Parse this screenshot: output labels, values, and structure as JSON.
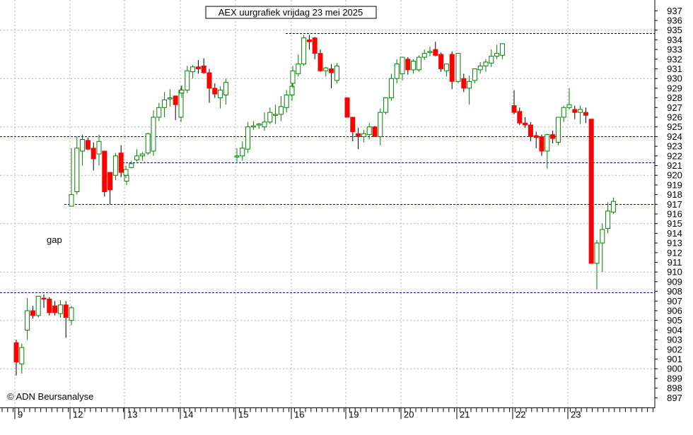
{
  "chart_data": {
    "type": "candlestick",
    "title": "AEX uurgrafiek vrijdag 23 mei 2025",
    "watermark": "© ADN Beursanalyse",
    "annotation": "gap",
    "y_axis": {
      "side": "right",
      "ylim": [
        896.5,
        938
      ],
      "tick_step": 1,
      "tick_min": 897,
      "tick_max": 937
    },
    "x_axis": {
      "day_labels": [
        "9",
        "12",
        "13",
        "14",
        "15",
        "16",
        "19",
        "20",
        "21",
        "22",
        "23"
      ]
    },
    "grid": true,
    "colors": {
      "up_body": "#ffffff",
      "up_outline": "#008000",
      "down_body": "#ff0000",
      "green_fill": "#00a000",
      "wick": "#008000",
      "grid": "#b0b0b0",
      "level_line": "#000080"
    },
    "levels": [
      {
        "value": 934.7,
        "from_day": 5
      },
      {
        "value": 924.0,
        "from_day": 0
      },
      {
        "value": 921.3,
        "from_day": 2
      },
      {
        "value": 917.0,
        "from_day": 1
      },
      {
        "value": 907.9,
        "from_day": 0
      }
    ],
    "days": [
      {
        "label": "9",
        "candles": [
          [
            902.7,
            903.0,
            899.3,
            900.7
          ],
          [
            900.5,
            902.6,
            899.5,
            902.2
          ],
          [
            904.0,
            907.3,
            903.0,
            906.0
          ],
          [
            906.0,
            906.5,
            905.2,
            905.5
          ],
          [
            905.5,
            907.5,
            905.3,
            907.5
          ],
          [
            907.3,
            907.7,
            906.3,
            907.2
          ],
          [
            907.2,
            907.4,
            905.5,
            905.8
          ],
          [
            906.5,
            907.0,
            905.5,
            905.8
          ],
          [
            905.7,
            907.1,
            905.3,
            906.6
          ],
          [
            906.6,
            907.0,
            903.2,
            905.3
          ],
          [
            905.0,
            906.5,
            904.5,
            906.3
          ]
        ]
      },
      {
        "label": "12",
        "candles": [
          [
            916.8,
            922.8,
            916.8,
            918.0
          ],
          [
            918.3,
            924.0,
            918.0,
            922.8
          ],
          [
            922.5,
            924.2,
            921.0,
            923.7
          ],
          [
            923.6,
            923.9,
            922.6,
            922.7
          ],
          [
            922.8,
            923.4,
            920.5,
            921.7
          ],
          [
            922.2,
            924.2,
            921.0,
            923.5
          ],
          [
            922.5,
            922.5,
            917.8,
            918.3
          ],
          [
            920.3,
            920.3,
            917.0,
            918.5
          ],
          [
            920.0,
            922.3,
            919.5,
            922.0
          ],
          [
            922.3,
            923.1,
            919.8,
            920.3
          ],
          [
            919.4,
            920.2,
            919.0,
            920.0
          ]
        ]
      },
      {
        "label": "13",
        "candles": [
          [
            920.0,
            921.0,
            919.7,
            920.6
          ],
          [
            920.8,
            921.5,
            920.7,
            921.2
          ],
          [
            921.6,
            922.7,
            921.4,
            922.0
          ],
          [
            922.0,
            922.4,
            921.5,
            922.2
          ],
          [
            922.3,
            924.4,
            922.1,
            924.3
          ],
          [
            922.5,
            926.7,
            922.0,
            926.0
          ],
          [
            926.0,
            927.5,
            925.6,
            927.0
          ],
          [
            927.0,
            928.6,
            926.0,
            927.8
          ],
          [
            928.0,
            928.9,
            927.1,
            928.0
          ],
          [
            928.2,
            928.2,
            925.7,
            927.3
          ],
          [
            926.0,
            929.2,
            925.5,
            928.8
          ]
        ]
      },
      {
        "label": "14",
        "candles": [
          [
            928.5,
            929.3,
            928.0,
            928.8
          ],
          [
            928.8,
            931.3,
            928.5,
            930.8
          ],
          [
            930.7,
            931.4,
            930.0,
            931.2
          ],
          [
            931.2,
            931.9,
            930.5,
            931.0
          ],
          [
            931.3,
            932.1,
            930.5,
            930.6
          ],
          [
            930.6,
            931.0,
            927.5,
            929.0
          ],
          [
            929.0,
            929.5,
            928.0,
            928.4
          ],
          [
            928.0,
            929.2,
            926.9,
            928.8
          ],
          [
            928.3,
            930.0,
            927.3,
            929.6
          ]
        ]
      },
      {
        "label": "15",
        "candles": [
          [
            922.0,
            922.8,
            921.4,
            922.0
          ],
          [
            922.0,
            923.5,
            921.5,
            922.8
          ],
          [
            922.7,
            925.5,
            922.3,
            925.0
          ],
          [
            925.0,
            925.6,
            924.7,
            925.1
          ],
          [
            925.2,
            925.4,
            924.8,
            925.3
          ],
          [
            925.0,
            926.5,
            924.6,
            925.5
          ],
          [
            925.5,
            927.0,
            925.3,
            926.5
          ],
          [
            926.3,
            927.3,
            925.3,
            926.3
          ],
          [
            926.3,
            928.2,
            925.6,
            927.1
          ],
          [
            927.0,
            928.8,
            926.5,
            928.3
          ],
          [
            928.3,
            929.5,
            927.7,
            929.2
          ]
        ]
      },
      {
        "label": "16",
        "candles": [
          [
            929.5,
            931.3,
            929.0,
            930.8
          ],
          [
            930.5,
            932.5,
            930.2,
            931.5
          ],
          [
            931.5,
            934.5,
            931.3,
            934.2
          ],
          [
            934.0,
            934.5,
            933.0,
            933.8
          ],
          [
            934.2,
            934.3,
            932.0,
            932.6
          ],
          [
            932.6,
            933.0,
            930.7,
            930.8
          ],
          [
            930.8,
            931.2,
            930.2,
            931.1
          ],
          [
            931.0,
            931.5,
            929.0,
            930.6
          ],
          [
            929.8,
            931.6,
            929.5,
            931.3
          ]
        ]
      },
      {
        "label": "19",
        "candles": [
          [
            928.0,
            928.0,
            926.0,
            926.0
          ],
          [
            926.0,
            926.0,
            923.5,
            924.5
          ],
          [
            924.3,
            924.9,
            922.7,
            924.0
          ],
          [
            924.0,
            924.7,
            923.4,
            924.3
          ],
          [
            924.2,
            925.4,
            923.7,
            925.0
          ],
          [
            925.0,
            925.1,
            924.0,
            924.0
          ],
          [
            924.0,
            926.9,
            923.1,
            926.5
          ],
          [
            926.5,
            928.0,
            926.3,
            928.0
          ],
          [
            928.0,
            930.5,
            927.7,
            930.0
          ],
          [
            930.0,
            932.0,
            929.5,
            931.5
          ]
        ]
      },
      {
        "label": "20",
        "candles": [
          [
            930.5,
            932.2,
            929.8,
            932.2
          ],
          [
            932.0,
            932.2,
            930.4,
            930.9
          ],
          [
            930.9,
            932.0,
            930.5,
            931.8
          ],
          [
            930.9,
            932.4,
            930.7,
            932.2
          ],
          [
            932.2,
            933.0,
            931.9,
            932.6
          ],
          [
            932.7,
            933.3,
            932.3,
            932.8
          ],
          [
            933.0,
            933.8,
            932.3,
            932.4
          ],
          [
            932.5,
            932.7,
            930.7,
            931.0
          ],
          [
            930.8,
            931.5,
            930.2,
            931.5
          ],
          [
            932.5,
            932.8,
            928.9,
            929.7
          ]
        ]
      },
      {
        "label": "21",
        "candles": [
          [
            929.7,
            932.6,
            929.5,
            932.6
          ],
          [
            930.0,
            930.5,
            928.6,
            929.0
          ],
          [
            929.0,
            930.3,
            927.3,
            929.7
          ],
          [
            929.8,
            931.0,
            929.5,
            931.0
          ],
          [
            930.9,
            931.7,
            930.5,
            931.3
          ],
          [
            931.3,
            932.0,
            930.7,
            931.7
          ],
          [
            931.6,
            933.0,
            931.2,
            932.3
          ],
          [
            932.3,
            933.5,
            932.0,
            932.6
          ],
          [
            932.4,
            933.6,
            932.0,
            933.6
          ]
        ]
      },
      {
        "label": "22",
        "candles": [
          [
            927.2,
            928.8,
            926.3,
            926.5
          ],
          [
            926.6,
            927.0,
            925.2,
            925.4
          ],
          [
            925.4,
            926.0,
            924.9,
            925.2
          ],
          [
            925.2,
            925.5,
            923.5,
            924.0
          ],
          [
            924.1,
            924.5,
            922.8,
            923.9
          ],
          [
            924.0,
            924.2,
            922.0,
            922.5
          ],
          [
            922.5,
            924.3,
            920.7,
            924.2
          ],
          [
            924.2,
            924.6,
            923.3,
            923.8
          ],
          [
            923.4,
            926.0,
            923.1,
            926.0
          ],
          [
            926.0,
            927.2,
            925.5,
            927.0
          ]
        ]
      },
      {
        "label": "23",
        "candles": [
          [
            927.0,
            929.0,
            926.8,
            927.3
          ],
          [
            926.8,
            927.2,
            925.8,
            926.5
          ],
          [
            926.5,
            927.2,
            925.3,
            926.8
          ],
          [
            926.5,
            927.0,
            925.4,
            926.2
          ],
          [
            925.8,
            925.8,
            910.9,
            910.9
          ],
          [
            910.9,
            913.3,
            908.2,
            913.0
          ],
          [
            913.0,
            915.0,
            910.0,
            914.4
          ],
          [
            914.5,
            917.2,
            914.0,
            916.3
          ],
          [
            916.2,
            917.7,
            916.0,
            917.3
          ]
        ]
      }
    ]
  }
}
